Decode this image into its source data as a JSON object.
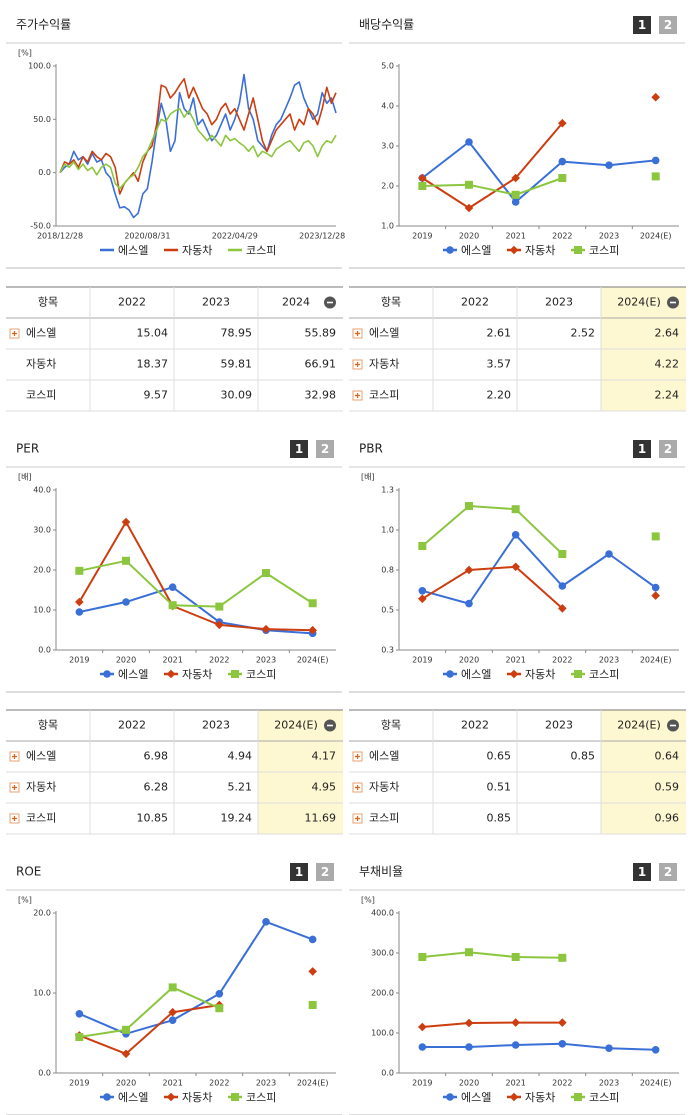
{
  "chart_data": [
    {
      "type": "line",
      "title": "주가수익률",
      "unit": "[%]",
      "categories": [
        "2018/12/28",
        null,
        null,
        null,
        null,
        null,
        null,
        null,
        null,
        null,
        null,
        null,
        null,
        null,
        null,
        null,
        null,
        null,
        null,
        "2020/08/31",
        null,
        null,
        null,
        null,
        null,
        null,
        null,
        null,
        null,
        null,
        null,
        null,
        null,
        null,
        null,
        null,
        null,
        null,
        "2022/04/29",
        null,
        null,
        null,
        null,
        null,
        null,
        null,
        null,
        null,
        null,
        null,
        null,
        null,
        null,
        null,
        null,
        null,
        null,
        "2023/12/28",
        null,
        null,
        null
      ],
      "series": [
        {
          "name": "에스엘",
          "color": "#3a6fd8",
          "values": [
            0,
            5,
            8,
            20,
            12,
            15,
            8,
            18,
            10,
            12,
            0,
            -5,
            -20,
            -33,
            -32,
            -35,
            -42,
            -38,
            -20,
            -15,
            10,
            40,
            65,
            50,
            20,
            30,
            75,
            60,
            55,
            70,
            45,
            50,
            40,
            30,
            35,
            45,
            55,
            40,
            50,
            65,
            92,
            60,
            50,
            30,
            25,
            20,
            35,
            45,
            50,
            60,
            70,
            82,
            85,
            70,
            60,
            50,
            55,
            75,
            65,
            70,
            56
          ]
        },
        {
          "name": "자동차",
          "color": "#cc3d10",
          "values": [
            0,
            10,
            8,
            12,
            5,
            15,
            10,
            20,
            15,
            12,
            18,
            15,
            5,
            -20,
            -10,
            -5,
            0,
            -8,
            10,
            20,
            25,
            45,
            82,
            80,
            70,
            75,
            82,
            88,
            70,
            80,
            70,
            60,
            55,
            45,
            50,
            60,
            65,
            55,
            60,
            50,
            40,
            55,
            70,
            50,
            30,
            20,
            30,
            40,
            45,
            50,
            55,
            40,
            50,
            45,
            60,
            55,
            45,
            60,
            80,
            65,
            75
          ]
        },
        {
          "name": "코스피",
          "color": "#8cc63f",
          "values": [
            0,
            8,
            5,
            10,
            3,
            8,
            2,
            5,
            -2,
            5,
            8,
            5,
            -10,
            -15,
            -10,
            -5,
            -2,
            5,
            15,
            20,
            30,
            40,
            50,
            48,
            55,
            58,
            60,
            52,
            58,
            50,
            40,
            35,
            30,
            35,
            30,
            25,
            35,
            30,
            32,
            28,
            25,
            20,
            25,
            15,
            20,
            18,
            15,
            22,
            25,
            28,
            30,
            25,
            20,
            28,
            30,
            25,
            15,
            25,
            30,
            28,
            35
          ]
        }
      ],
      "ylim": [
        -50,
        100
      ],
      "yticks": [
        {
          "value": -50,
          "label": "-50.0"
        },
        {
          "value": 0,
          "label": "0.0"
        },
        {
          "value": 50,
          "label": "50.0"
        },
        {
          "value": 100,
          "label": "100.0"
        }
      ]
    },
    {
      "type": "line",
      "title": "배당수익률",
      "pages": [
        "1",
        "2"
      ],
      "categories": [
        "2019",
        "2020",
        "2021",
        "2022",
        "2023",
        "2024(E)"
      ],
      "series": [
        {
          "name": "에스엘",
          "color": "#3a6fd8",
          "marker": "circle",
          "values": [
            2.2,
            3.1,
            1.6,
            2.61,
            2.52,
            2.64
          ]
        },
        {
          "name": "자동차",
          "color": "#cc3d10",
          "marker": "diamond",
          "values": [
            2.2,
            1.45,
            2.2,
            3.57,
            null,
            4.22
          ]
        },
        {
          "name": "코스피",
          "color": "#8cc63f",
          "marker": "square",
          "values": [
            2.0,
            2.03,
            1.78,
            2.2,
            null,
            2.24
          ]
        }
      ],
      "ylim": [
        1,
        5
      ],
      "yticks": [
        {
          "value": 1,
          "label": "1.0"
        },
        {
          "value": 2,
          "label": "2.0"
        },
        {
          "value": 3,
          "label": "3.0"
        },
        {
          "value": 4,
          "label": "4.0"
        },
        {
          "value": 5,
          "label": "5.0"
        }
      ]
    },
    {
      "type": "line",
      "title": "PER",
      "unit": "[배]",
      "pages": [
        "1",
        "2"
      ],
      "categories": [
        "2019",
        "2020",
        "2021",
        "2022",
        "2023",
        "2024(E)"
      ],
      "series": [
        {
          "name": "에스엘",
          "color": "#3a6fd8",
          "marker": "circle",
          "values": [
            9.5,
            12,
            15.7,
            6.98,
            4.94,
            4.17
          ]
        },
        {
          "name": "자동차",
          "color": "#cc3d10",
          "marker": "diamond",
          "values": [
            12,
            32,
            11,
            6.28,
            5.21,
            4.95
          ]
        },
        {
          "name": "코스피",
          "color": "#8cc63f",
          "marker": "square",
          "values": [
            19.8,
            22.3,
            11.2,
            10.85,
            19.24,
            11.69
          ]
        }
      ],
      "ylim": [
        0,
        40
      ],
      "yticks": [
        {
          "value": 0,
          "label": "0.0"
        },
        {
          "value": 10,
          "label": "10.0"
        },
        {
          "value": 20,
          "label": "20.0"
        },
        {
          "value": 30,
          "label": "30.0"
        },
        {
          "value": 40,
          "label": "40.0"
        }
      ]
    },
    {
      "type": "line",
      "title": "PBR",
      "unit": "[배]",
      "pages": [
        "1",
        "2"
      ],
      "categories": [
        "2019",
        "2020",
        "2021",
        "2022",
        "2023",
        "2024(E)"
      ],
      "series": [
        {
          "name": "에스엘",
          "color": "#3a6fd8",
          "marker": "circle",
          "values": [
            0.62,
            0.54,
            0.97,
            0.65,
            0.85,
            0.64
          ]
        },
        {
          "name": "자동차",
          "color": "#cc3d10",
          "marker": "diamond",
          "values": [
            0.57,
            0.75,
            0.77,
            0.51,
            null,
            0.59
          ]
        },
        {
          "name": "코스피",
          "color": "#8cc63f",
          "marker": "square",
          "values": [
            0.9,
            1.15,
            1.13,
            0.85,
            null,
            0.96
          ]
        }
      ],
      "ylim": [
        0.25,
        1.25
      ],
      "yticks": [
        {
          "value": 0.25,
          "label": "0.3"
        },
        {
          "value": 0.5,
          "label": "0.5"
        },
        {
          "value": 0.75,
          "label": "0.8"
        },
        {
          "value": 1,
          "label": "1.0"
        },
        {
          "value": 1.25,
          "label": "1.3"
        }
      ]
    },
    {
      "type": "line",
      "title": "ROE",
      "unit": "[%]",
      "pages": [
        "1",
        "2"
      ],
      "categories": [
        "2019",
        "2020",
        "2021",
        "2022",
        "2023",
        "2024(E)"
      ],
      "series": [
        {
          "name": "에스엘",
          "color": "#3a6fd8",
          "marker": "circle",
          "values": [
            7.4,
            4.9,
            6.6,
            9.9,
            18.9,
            16.7
          ]
        },
        {
          "name": "자동차",
          "color": "#cc3d10",
          "marker": "diamond",
          "values": [
            4.7,
            2.4,
            7.6,
            8.5,
            null,
            12.7
          ]
        },
        {
          "name": "코스피",
          "color": "#8cc63f",
          "marker": "square",
          "values": [
            4.5,
            5.4,
            10.7,
            8.1,
            null,
            8.5
          ]
        }
      ],
      "ylim": [
        0,
        20
      ],
      "yticks": [
        {
          "value": 0,
          "label": "0.0"
        },
        {
          "value": 10,
          "label": "10.0"
        },
        {
          "value": 20,
          "label": "20.0"
        }
      ]
    },
    {
      "type": "line",
      "title": "부채비율",
      "unit": "[%]",
      "pages": [
        "1",
        "2"
      ],
      "categories": [
        "2019",
        "2020",
        "2021",
        "2022",
        "2023",
        "2024(E)"
      ],
      "series": [
        {
          "name": "에스엘",
          "color": "#3a6fd8",
          "marker": "circle",
          "values": [
            65,
            65,
            70,
            73,
            62,
            58
          ]
        },
        {
          "name": "자동차",
          "color": "#cc3d10",
          "marker": "diamond",
          "values": [
            115,
            125,
            126,
            126,
            null,
            null
          ]
        },
        {
          "name": "코스피",
          "color": "#8cc63f",
          "marker": "square",
          "values": [
            290,
            302,
            290,
            288,
            null,
            null
          ]
        }
      ],
      "ylim": [
        0,
        400
      ],
      "yticks": [
        {
          "value": 0,
          "label": "0.0"
        },
        {
          "value": 100,
          "label": "100.0"
        },
        {
          "value": 200,
          "label": "200.0"
        },
        {
          "value": 300,
          "label": "300.0"
        },
        {
          "value": 400,
          "label": "400.0"
        }
      ]
    }
  ],
  "tables": [
    {
      "header": [
        "항목",
        "2022",
        "2023",
        "2024"
      ],
      "highlight_last": false,
      "rows": [
        {
          "name": "에스엘",
          "expandable": true,
          "values": [
            "15.04",
            "78.95",
            "55.89"
          ]
        },
        {
          "name": "자동차",
          "expandable": false,
          "values": [
            "18.37",
            "59.81",
            "66.91"
          ]
        },
        {
          "name": "코스피",
          "expandable": false,
          "values": [
            "9.57",
            "30.09",
            "32.98"
          ]
        }
      ]
    },
    {
      "header": [
        "항목",
        "2022",
        "2023",
        "2024(E)"
      ],
      "highlight_last": true,
      "rows": [
        {
          "name": "에스엘",
          "expandable": true,
          "values": [
            "2.61",
            "2.52",
            "2.64"
          ]
        },
        {
          "name": "자동차",
          "expandable": true,
          "values": [
            "3.57",
            null,
            "4.22"
          ]
        },
        {
          "name": "코스피",
          "expandable": true,
          "values": [
            "2.20",
            null,
            "2.24"
          ]
        }
      ]
    },
    {
      "header": [
        "항목",
        "2022",
        "2023",
        "2024(E)"
      ],
      "highlight_last": true,
      "rows": [
        {
          "name": "에스엘",
          "expandable": true,
          "values": [
            "6.98",
            "4.94",
            "4.17"
          ]
        },
        {
          "name": "자동차",
          "expandable": true,
          "values": [
            "6.28",
            "5.21",
            "4.95"
          ]
        },
        {
          "name": "코스피",
          "expandable": true,
          "values": [
            "10.85",
            "19.24",
            "11.69"
          ]
        }
      ]
    },
    {
      "header": [
        "항목",
        "2022",
        "2023",
        "2024(E)"
      ],
      "highlight_last": true,
      "rows": [
        {
          "name": "에스엘",
          "expandable": true,
          "values": [
            "0.65",
            "0.85",
            "0.64"
          ]
        },
        {
          "name": "자동차",
          "expandable": true,
          "values": [
            "0.51",
            null,
            "0.59"
          ]
        },
        {
          "name": "코스피",
          "expandable": true,
          "values": [
            "0.85",
            null,
            "0.96"
          ]
        }
      ]
    }
  ]
}
